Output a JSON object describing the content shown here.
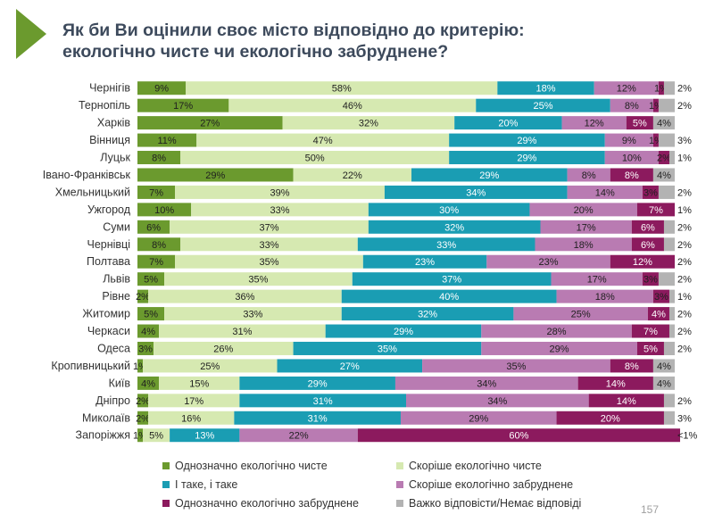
{
  "title": "Як би Ви оцінили своє місто відповідно до критерію:\nекологічно чисте чи екологічно забруднене?",
  "page_number": "157",
  "chart_data": {
    "type": "bar",
    "orientation": "horizontal",
    "stacked": true,
    "categories": [
      "Чернігів",
      "Тернопіль",
      "Харків",
      "Вінниця",
      "Луцьк",
      "Івано-Франківськ",
      "Хмельницький",
      "Ужгород",
      "Суми",
      "Чернівці",
      "Полтава",
      "Львів",
      "Рівне",
      "Житомир",
      "Черкаси",
      "Одеса",
      "Кропивницький",
      "Київ",
      "Дніпро",
      "Миколаїв",
      "Запоріжжя"
    ],
    "xlim": [
      0,
      100
    ],
    "grid": false,
    "legend_position": "bottom",
    "series": [
      {
        "name": "Однозначно екологічно чисте",
        "color": "#6b9a2e",
        "values": [
          9,
          17,
          27,
          11,
          8,
          29,
          7,
          10,
          6,
          8,
          7,
          5,
          2,
          5,
          4,
          3,
          1,
          4,
          2,
          2,
          1
        ],
        "labels": [
          "9%",
          "17%",
          "27%",
          "11%",
          "8%",
          "29%",
          "7%",
          "10%",
          "6%",
          "8%",
          "7%",
          "5%",
          "2%",
          "5%",
          "4%",
          "3%",
          "1%",
          "4%",
          "2%",
          "2%",
          "1%"
        ]
      },
      {
        "name": "Скоріше екологічно чисте",
        "color": "#d6e9b1",
        "values": [
          58,
          46,
          32,
          47,
          50,
          22,
          39,
          33,
          37,
          33,
          35,
          35,
          36,
          33,
          31,
          26,
          25,
          15,
          17,
          16,
          5
        ],
        "labels": [
          "58%",
          "46%",
          "32%",
          "47%",
          "50%",
          "22%",
          "39%",
          "33%",
          "37%",
          "33%",
          "35%",
          "35%",
          "36%",
          "33%",
          "31%",
          "26%",
          "25%",
          "15%",
          "17%",
          "16%",
          "5%"
        ]
      },
      {
        "name": "І таке, і таке",
        "color": "#1a9db3",
        "values": [
          18,
          25,
          20,
          29,
          29,
          29,
          34,
          30,
          32,
          33,
          23,
          37,
          40,
          32,
          29,
          35,
          27,
          29,
          31,
          31,
          13
        ],
        "labels": [
          "18%",
          "25%",
          "20%",
          "29%",
          "29%",
          "29%",
          "34%",
          "30%",
          "32%",
          "33%",
          "23%",
          "37%",
          "40%",
          "32%",
          "29%",
          "35%",
          "27%",
          "29%",
          "31%",
          "31%",
          "13%"
        ]
      },
      {
        "name": "Скоріше екологічно забруднене",
        "color": "#b97bb2",
        "values": [
          12,
          8,
          12,
          9,
          10,
          8,
          14,
          20,
          17,
          18,
          23,
          17,
          18,
          25,
          28,
          29,
          35,
          34,
          34,
          29,
          22
        ],
        "labels": [
          "12%",
          "8%",
          "12%",
          "9%",
          "10%",
          "8%",
          "14%",
          "20%",
          "17%",
          "18%",
          "23%",
          "17%",
          "18%",
          "25%",
          "28%",
          "29%",
          "35%",
          "34%",
          "34%",
          "29%",
          "22%"
        ]
      },
      {
        "name": "Однозначно екологічно забруднене",
        "color": "#8c1a5e",
        "values": [
          1,
          1,
          5,
          1,
          2,
          8,
          3,
          7,
          6,
          6,
          12,
          3,
          3,
          4,
          7,
          5,
          8,
          14,
          14,
          20,
          60
        ],
        "labels": [
          "1%",
          "1%",
          "5%",
          "1%",
          "2%",
          "8%",
          "3%",
          "7%",
          "6%",
          "6%",
          "12%",
          "3%",
          "3%",
          "4%",
          "7%",
          "5%",
          "8%",
          "14%",
          "14%",
          "20%",
          "60%"
        ]
      },
      {
        "name": "Важко відповісти/Немає відповіді",
        "color": "#b3b3b3",
        "values": [
          2,
          2,
          4,
          3,
          1,
          4,
          2,
          1,
          2,
          2,
          2,
          2,
          1,
          2,
          2,
          2,
          4,
          4,
          2,
          3,
          0.5
        ],
        "labels": [
          "2%",
          "2%",
          "4%",
          "3%",
          "1%",
          "4%",
          "2%",
          "1%",
          "2%",
          "2%",
          "2%",
          "2%",
          "1%",
          "2%",
          "2%",
          "2%",
          "4%",
          "4%",
          "2%",
          "3%",
          "<1%"
        ]
      }
    ]
  }
}
